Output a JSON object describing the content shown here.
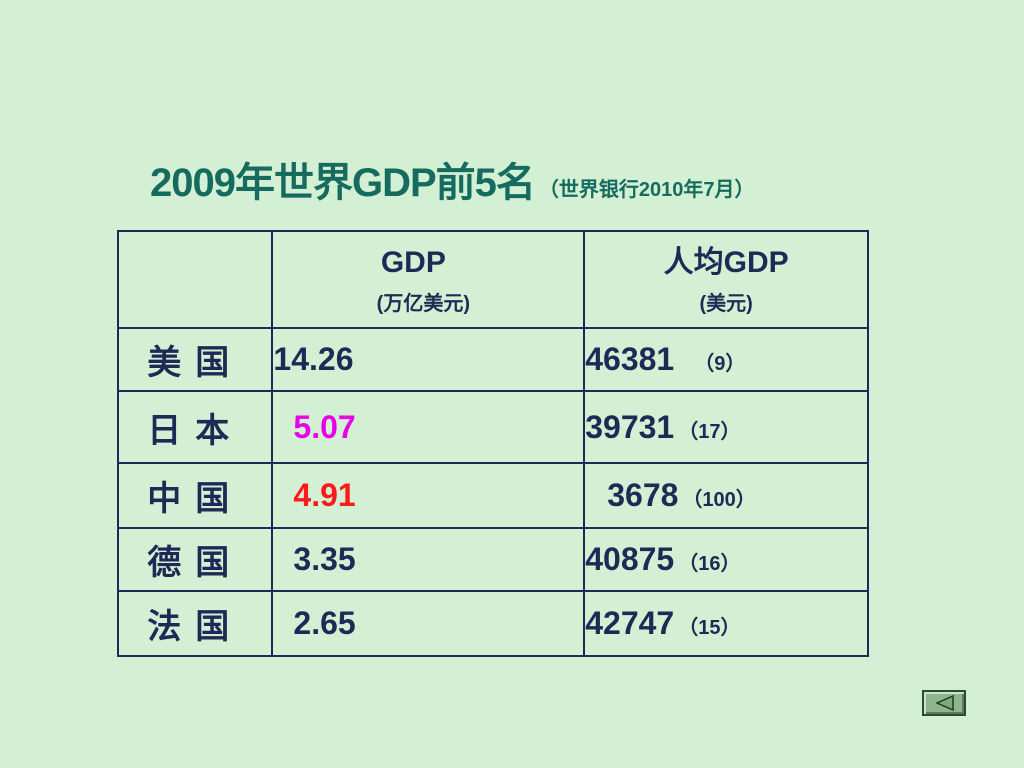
{
  "title": {
    "main": "2009年世界GDP前5名",
    "source": "（世界银行2010年7月）"
  },
  "table": {
    "headers": {
      "country": "",
      "gdp": "GDP",
      "gdp_unit": "(万亿美元)",
      "per_capita": "人均GDP",
      "per_capita_unit": "(美元)"
    },
    "rows": [
      {
        "country": "美国",
        "gdp": "14.26",
        "per_capita": "46381",
        "rank": "（9）"
      },
      {
        "country": "日本",
        "gdp": "5.07",
        "per_capita": "39731",
        "rank": "（17）"
      },
      {
        "country": "中国",
        "gdp": "4.91",
        "per_capita": "3678",
        "rank": "（100）"
      },
      {
        "country": "德国",
        "gdp": "3.35",
        "per_capita": "40875",
        "rank": "（16）"
      },
      {
        "country": "法国",
        "gdp": "2.65",
        "per_capita": "42747",
        "rank": "（15）"
      }
    ]
  },
  "colors": {
    "background": "#d4f0d4",
    "title": "#156b5e",
    "text": "#1d2a55",
    "japan_gdp": "#e600e6",
    "china_gdp": "#ff1a1a"
  },
  "nav": {
    "back_icon": "triangle-left-icon"
  }
}
